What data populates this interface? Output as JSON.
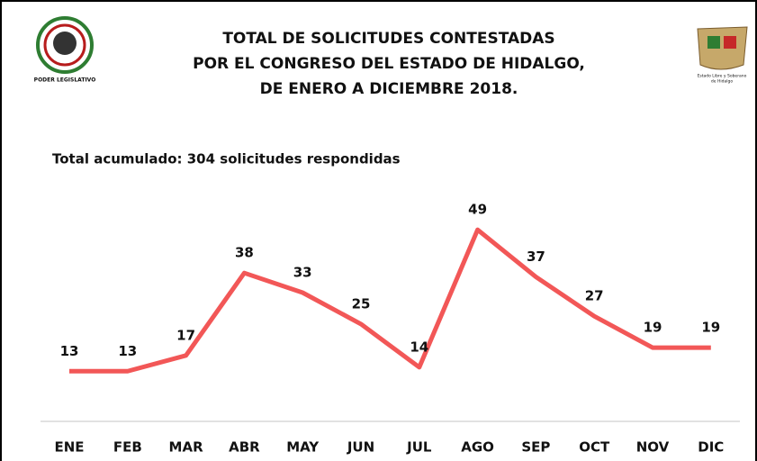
{
  "chart_data": {
    "type": "line",
    "title": [
      "TOTAL DE SOLICITUDES CONTESTADAS",
      "POR EL CONGRESO DEL ESTADO DE HIDALGO,",
      "DE ENERO A DICIEMBRE 2018."
    ],
    "subtitle": "Total acumulado: 304 solicitudes respondidas",
    "logo_left_caption": "PODER LEGISLATIVO",
    "logo_right_caption": [
      "Estado Libre y Soberano",
      "de Hidalgo"
    ],
    "categories": [
      "ENE",
      "FEB",
      "MAR",
      "ABR",
      "MAY",
      "JUN",
      "JUL",
      "AGO",
      "SEP",
      "OCT",
      "NOV",
      "DIC"
    ],
    "values": [
      13,
      13,
      17,
      38,
      33,
      25,
      14,
      49,
      37,
      27,
      19,
      19
    ],
    "color": "#f25757",
    "ylim": [
      0,
      55
    ]
  }
}
